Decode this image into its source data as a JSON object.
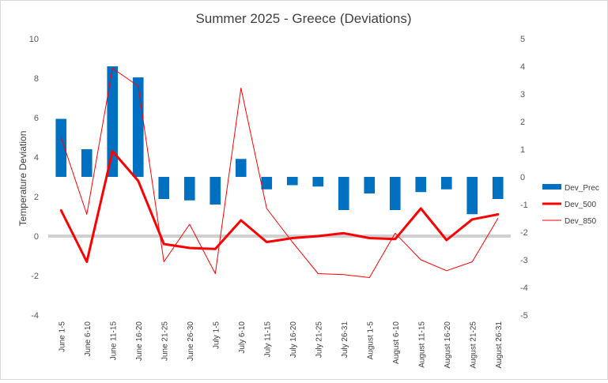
{
  "chart_data": {
    "type": "bar",
    "title": "Summer 2025 - Greece (Deviations)",
    "ylabel": "Temperature Deviation",
    "y2label": "",
    "ylim": [
      -4,
      10
    ],
    "y2lim": [
      -5,
      5
    ],
    "yticks": [
      -4,
      -2,
      0,
      2,
      4,
      6,
      8,
      10
    ],
    "y2ticks": [
      -5,
      -4,
      -3,
      -2,
      -1,
      0,
      1,
      2,
      3,
      4,
      5
    ],
    "grid": false,
    "legend": "right",
    "categories": [
      "June 1-5",
      "June 6-10",
      "June 11-15",
      "June 16-20",
      "June 21-25",
      "June 26-30",
      "July 1-5",
      "July 6-10",
      "July 11-15",
      "July 16-20",
      "July 21-25",
      "July 26-31",
      "August 1-5",
      "August 6-10",
      "August 11-15",
      "August 16-20",
      "August 21-25",
      "August 26-31"
    ],
    "series": [
      {
        "name": "Dev_Prec",
        "type": "bar",
        "axis": "right",
        "color": "#0070c0",
        "values": [
          2.1,
          1.0,
          4.0,
          3.6,
          -0.8,
          -0.85,
          -1.0,
          0.65,
          -0.45,
          -0.3,
          -0.35,
          -1.2,
          -0.6,
          -1.2,
          -0.55,
          -0.45,
          -1.35,
          -0.8
        ]
      },
      {
        "name": "Dev_500",
        "type": "line",
        "axis": "left",
        "color": "#ff0000",
        "width": 3,
        "values": [
          1.3,
          -1.3,
          4.3,
          2.8,
          -0.4,
          -0.6,
          -0.65,
          0.8,
          -0.3,
          -0.1,
          0.0,
          0.15,
          -0.1,
          -0.15,
          1.4,
          -0.2,
          0.85,
          1.1
        ]
      },
      {
        "name": "Dev_850",
        "type": "line",
        "axis": "left",
        "color": "#ff0000",
        "width": 1,
        "values": [
          5.0,
          1.1,
          8.5,
          7.6,
          -1.3,
          0.6,
          -1.9,
          7.5,
          1.4,
          -0.3,
          -1.9,
          -1.95,
          -2.1,
          0.15,
          -1.2,
          -1.75,
          -1.3,
          0.9
        ]
      }
    ]
  }
}
